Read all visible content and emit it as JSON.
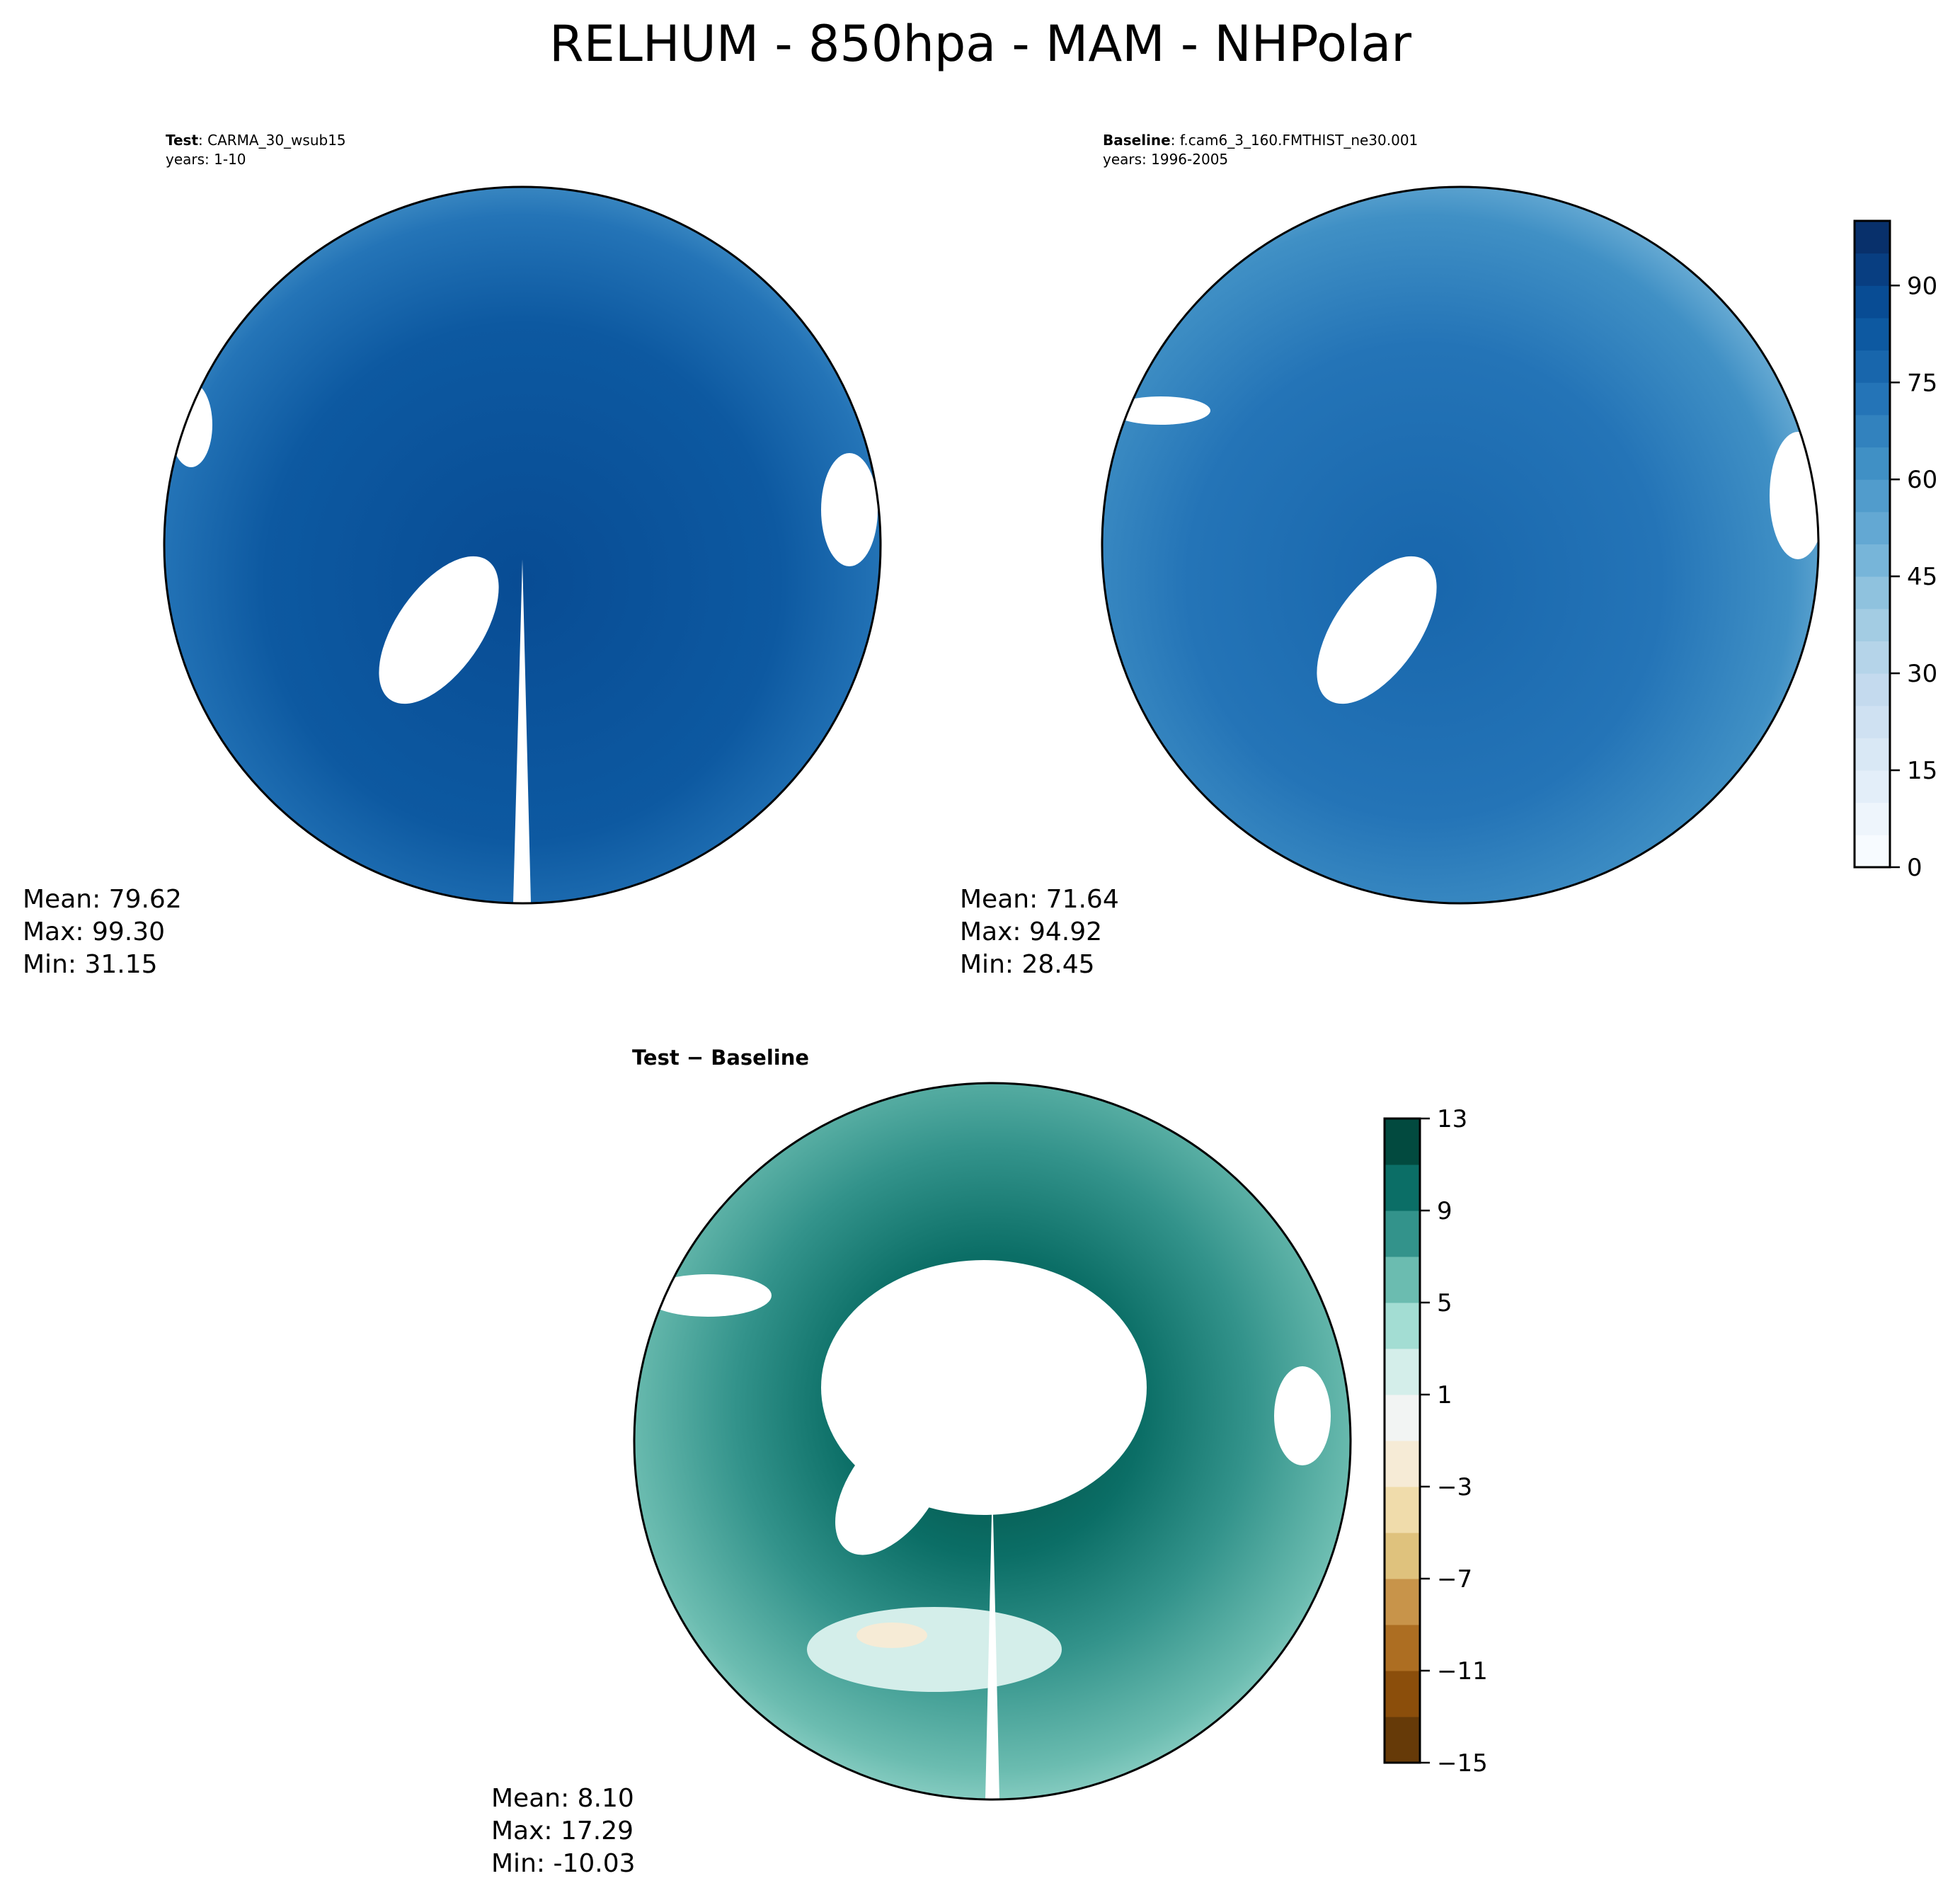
{
  "chart_data": [
    {
      "type": "heatmap",
      "title": "RELHUM - 850hpa - MAM - NHPolar",
      "panels": [
        {
          "id": "test",
          "label_bold": "Test",
          "label_rest": ": CARMA_30_wsub15",
          "years": "years: 1-10",
          "stats": {
            "mean": "Mean: 79.62",
            "max": "Max: 99.30",
            "min": "Min: 31.15"
          },
          "colormap": "Blues",
          "projection": "north-polar-stereographic"
        },
        {
          "id": "baseline",
          "label_bold": "Baseline",
          "label_rest": ": f.cam6_3_160.FMTHIST_ne30.001",
          "years": "years: 1996-2005",
          "stats": {
            "mean": "Mean: 71.64",
            "max": "Max: 94.92",
            "min": "Min: 28.45"
          },
          "colormap": "Blues",
          "projection": "north-polar-stereographic"
        },
        {
          "id": "diff",
          "label_bold": "Test − Baseline",
          "stats": {
            "mean": "Mean:  8.10",
            "max": "Max: 17.29",
            "min": "Min: -10.03"
          },
          "colormap": "BrBG",
          "projection": "north-polar-stereographic"
        }
      ],
      "colorbars": [
        {
          "range": [
            0,
            100
          ],
          "step": 5,
          "ticks": [
            "0",
            "15",
            "30",
            "45",
            "60",
            "75",
            "90"
          ],
          "tick_values": [
            0,
            15,
            30,
            45,
            60,
            75,
            90
          ],
          "colors": [
            "#f7fbff",
            "#eef5fc",
            "#e3eef9",
            "#d9e8f5",
            "#cfe1f2",
            "#c4daee",
            "#b5d4e9",
            "#a3cce3",
            "#8fc2de",
            "#77b5d9",
            "#63a8d3",
            "#519ccc",
            "#4090c5",
            "#3282be",
            "#2474b7",
            "#1866ac",
            "#0d59a1",
            "#084c94",
            "#083e81",
            "#08306b"
          ]
        },
        {
          "range": [
            -15,
            13
          ],
          "step": 2,
          "ticks": [
            "−15",
            "−11",
            "−7",
            "−3",
            "1",
            "5",
            "9",
            "13"
          ],
          "tick_values": [
            -15,
            -11,
            -7,
            -3,
            1,
            5,
            9,
            13
          ],
          "colors": [
            "#663a08",
            "#8b4e0b",
            "#ad6e22",
            "#c8944a",
            "#dfc27d",
            "#f0dcab",
            "#f6ebd6",
            "#f2f4f3",
            "#d4eeea",
            "#a3ddd3",
            "#6bbcb0",
            "#33938b",
            "#0b6e66",
            "#024a3f"
          ]
        }
      ]
    }
  ]
}
